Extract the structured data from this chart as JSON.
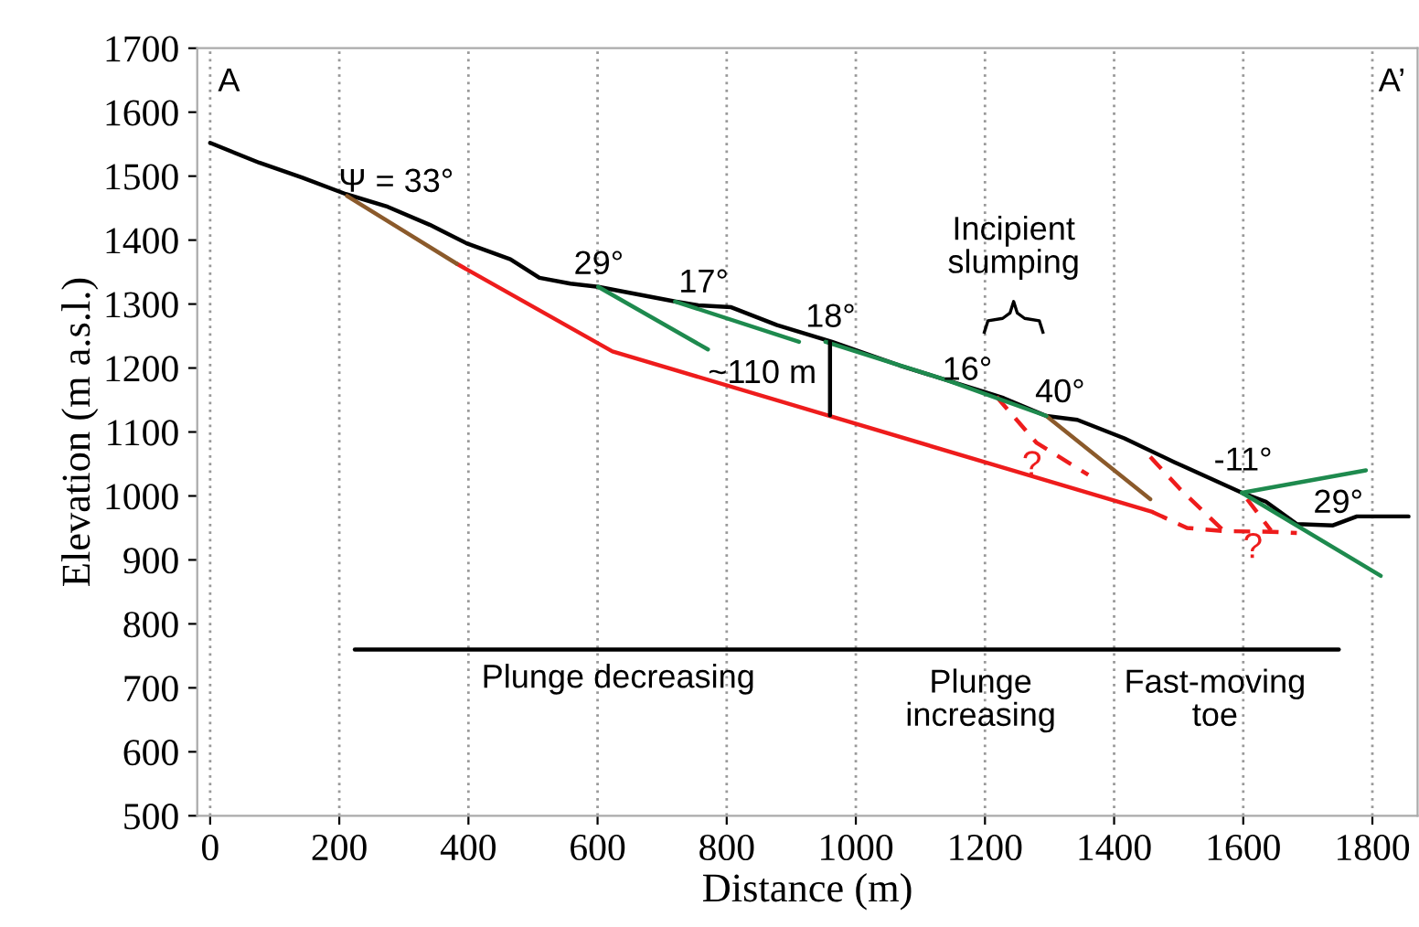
{
  "chart_data": {
    "type": "line",
    "xlabel": "Distance (m)",
    "ylabel": "Elevation (m a.s.l.)",
    "xlim": [
      -20,
      1870
    ],
    "ylim": [
      500,
      1700
    ],
    "xticks": [
      0,
      200,
      400,
      600,
      800,
      1000,
      1200,
      1400,
      1600,
      1800
    ],
    "yticks": [
      500,
      600,
      700,
      800,
      900,
      1000,
      1100,
      1200,
      1300,
      1400,
      1500,
      1600,
      1700
    ],
    "grid": "x",
    "legend": false,
    "line_style": "solid",
    "series": [
      {
        "color": "#000000",
        "x": [
          0,
          76,
          142,
          210,
          275,
          340,
          397,
          465,
          510,
          558,
          601,
          720,
          756,
          807,
          878,
          963,
          1068,
          1201,
          1229,
          1295,
          1343,
          1416,
          1493,
          1598,
          1635,
          1683,
          1739,
          1776,
          1805,
          1856
        ],
        "values": [
          1552,
          1521,
          1498,
          1472,
          1452,
          1424,
          1395,
          1370,
          1341,
          1332,
          1327,
          1304,
          1298,
          1295,
          1267,
          1241,
          1204,
          1162,
          1153,
          1125,
          1119,
          1090,
          1053,
          1005,
          991,
          956,
          954,
          968,
          968,
          968
        ]
      },
      {
        "color": "#ee1c1c",
        "x": [
          382,
          623,
          1459
        ],
        "values": [
          1363,
          1226,
          975
        ]
      },
      {
        "color": "#8b5a2b",
        "x": [
          212,
          382
        ],
        "values": [
          1469,
          1363
        ]
      },
      {
        "color": "#8b5a2b",
        "x": [
          1295,
          1456
        ],
        "values": [
          1125,
          995
        ]
      },
      {
        "color": "#ee1c1c",
        "line_style": "dashed",
        "x": [
          1218,
          1280,
          1360
        ],
        "values": [
          1155,
          1083,
          1033
        ]
      },
      {
        "color": "#ee1c1c",
        "line_style": "dashed",
        "x": [
          1456,
          1501,
          1569
        ],
        "values": [
          1061,
          1012,
          946
        ]
      },
      {
        "color": "#ee1c1c",
        "line_style": "dashed",
        "x": [
          1459,
          1513,
          1569,
          1643,
          1683
        ],
        "values": [
          975,
          950,
          945,
          944,
          942
        ]
      },
      {
        "color": "#ee1c1c",
        "line_style": "dashed",
        "x": [
          1606,
          1643
        ],
        "values": [
          995,
          946
        ]
      },
      {
        "color": "#1e8a4e",
        "x": [
          601,
          771
        ],
        "values": [
          1327,
          1229
        ]
      },
      {
        "color": "#1e8a4e",
        "x": [
          720,
          912
        ],
        "values": [
          1304,
          1241
        ]
      },
      {
        "color": "#1e8a4e",
        "x": [
          953,
          1144,
          1295
        ],
        "values": [
          1241,
          1180,
          1125
        ]
      },
      {
        "color": "#1e8a4e",
        "x": [
          1598,
          1790
        ],
        "values": [
          1005,
          1040
        ]
      },
      {
        "color": "#1e8a4e",
        "x": [
          1598,
          1813
        ],
        "values": [
          1005,
          875
        ]
      },
      {
        "color": "#000000",
        "x": [
          960,
          960
        ],
        "values": [
          1241,
          1126
        ]
      },
      {
        "color": "#000000",
        "x": [
          224,
          1045,
          1329,
          1748
        ],
        "values": [
          760,
          760,
          760,
          760
        ]
      }
    ],
    "annotations": [
      "A",
      "A’",
      "Ψ = 33°",
      "29°",
      "17°",
      "18°",
      "~110 m",
      "16°",
      "Incipient\nslumping",
      "40°",
      "?",
      "-11°",
      "29°",
      "?",
      "Plunge decreasing",
      "Plunge\nincreasing",
      "Fast-moving\ntoe"
    ]
  }
}
